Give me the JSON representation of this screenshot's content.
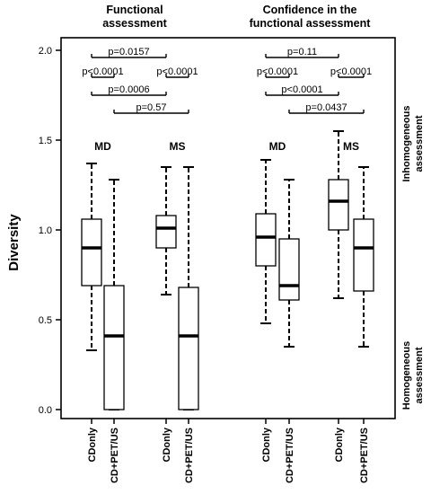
{
  "chart_data": {
    "type": "box",
    "ylabel": "Diversity",
    "ylim": [
      0.0,
      2.0
    ],
    "yticks": [
      0.0,
      0.5,
      1.0,
      1.5,
      2.0
    ],
    "ytick_labels": [
      "0.0",
      "0.5",
      "1.0",
      "1.5",
      "2.0"
    ],
    "panels": [
      {
        "title": [
          "Functional",
          "assessment"
        ],
        "groups": [
          {
            "label": "MD",
            "boxes": [
              {
                "category": "CDonly",
                "whisker_low": 0.33,
                "q1": 0.69,
                "median": 0.9,
                "q3": 1.06,
                "whisker_high": 1.37
              },
              {
                "category": "CD+PET/US",
                "whisker_low": 0.0,
                "q1": 0.0,
                "median": 0.41,
                "q3": 0.69,
                "whisker_high": 1.28
              }
            ]
          },
          {
            "label": "MS",
            "boxes": [
              {
                "category": "CDonly",
                "whisker_low": 0.64,
                "q1": 0.9,
                "median": 1.01,
                "q3": 1.08,
                "whisker_high": 1.35
              },
              {
                "category": "CD+PET/US",
                "whisker_low": 0.0,
                "q1": 0.0,
                "median": 0.41,
                "q3": 0.68,
                "whisker_high": 1.35
              }
            ]
          }
        ],
        "comparisons": [
          {
            "from": 0,
            "to": 2,
            "label": "p=0.0157",
            "y": 1.96
          },
          {
            "from": 0,
            "to": 1,
            "label": "p<0.0001",
            "y": 1.85
          },
          {
            "from": 2,
            "to": 3,
            "label": "p<0.0001",
            "y": 1.85
          },
          {
            "from": 0,
            "to": 2,
            "label": "p=0.0006",
            "y": 1.75
          },
          {
            "from": 1,
            "to": 3,
            "label": "p=0.57",
            "y": 1.65
          }
        ]
      },
      {
        "title": [
          "Confidence in the",
          "functional assessment"
        ],
        "groups": [
          {
            "label": "MD",
            "boxes": [
              {
                "category": "CDonly",
                "whisker_low": 0.48,
                "q1": 0.8,
                "median": 0.96,
                "q3": 1.09,
                "whisker_high": 1.39
              },
              {
                "category": "CD+PET/US",
                "whisker_low": 0.35,
                "q1": 0.61,
                "median": 0.69,
                "q3": 0.95,
                "whisker_high": 1.28
              }
            ]
          },
          {
            "label": "MS",
            "boxes": [
              {
                "category": "CDonly",
                "whisker_low": 0.62,
                "q1": 1.0,
                "median": 1.16,
                "q3": 1.28,
                "whisker_high": 1.55
              },
              {
                "category": "CD+PET/US",
                "whisker_low": 0.35,
                "q1": 0.66,
                "median": 0.9,
                "q3": 1.06,
                "whisker_high": 1.35
              }
            ]
          }
        ],
        "comparisons": [
          {
            "from": 0,
            "to": 2,
            "label": "p=0.11",
            "y": 1.96
          },
          {
            "from": 0,
            "to": 1,
            "label": "p<0.0001",
            "y": 1.85
          },
          {
            "from": 2,
            "to": 3,
            "label": "p<0.0001",
            "y": 1.85
          },
          {
            "from": 0,
            "to": 2,
            "label": "p<0.0001",
            "y": 1.75
          },
          {
            "from": 1,
            "to": 3,
            "label": "p=0.0437",
            "y": 1.65
          }
        ]
      }
    ],
    "side_labels": {
      "top": [
        "Inhomogeneous",
        "assessment"
      ],
      "bottom": [
        "Homogeneous",
        "assessment"
      ]
    }
  }
}
